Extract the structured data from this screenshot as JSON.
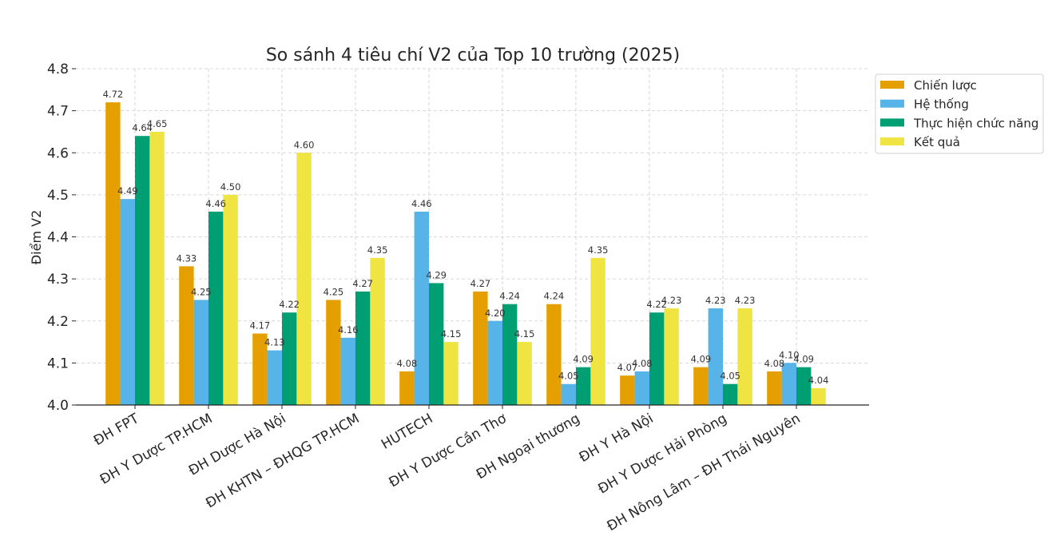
{
  "chart_data": {
    "type": "bar",
    "title": "So sánh 4 tiêu chí V2 của Top 10 trường (2025)",
    "xlabel": "",
    "ylabel": "Điểm V2",
    "ylim": [
      4.0,
      4.8
    ],
    "yticks": [
      "4.0",
      "4.1",
      "4.2",
      "4.3",
      "4.4",
      "4.5",
      "4.6",
      "4.7",
      "4.8"
    ],
    "grid": true,
    "legend_position": "top-right",
    "categories": [
      "ĐH FPT",
      "ĐH Y Dược TP.HCM",
      "ĐH Dược Hà Nội",
      "ĐH KHTN – ĐHQG TP.HCM",
      "HUTECH",
      "ĐH Y Dược Cần Thơ",
      "ĐH Ngoại thương",
      "ĐH Y Hà Nội",
      "ĐH Y Dược Hải Phòng",
      "ĐH Nông Lâm – ĐH Thái Nguyên"
    ],
    "series": [
      {
        "name": "Chiến lược",
        "color": "#E69F00",
        "values": [
          4.72,
          4.33,
          4.17,
          4.25,
          4.08,
          4.27,
          4.24,
          4.07,
          4.09,
          4.08
        ]
      },
      {
        "name": "Hệ thống",
        "color": "#56B4E9",
        "values": [
          4.49,
          4.25,
          4.13,
          4.16,
          4.46,
          4.2,
          4.05,
          4.08,
          4.23,
          4.1
        ]
      },
      {
        "name": "Thực hiện chức năng",
        "color": "#009E73",
        "values": [
          4.64,
          4.46,
          4.22,
          4.27,
          4.29,
          4.24,
          4.09,
          4.22,
          4.05,
          4.09
        ]
      },
      {
        "name": "Kết quả",
        "color": "#F0E442",
        "values": [
          4.65,
          4.5,
          4.6,
          4.35,
          4.15,
          4.15,
          4.35,
          4.23,
          4.23,
          4.04
        ]
      }
    ]
  }
}
